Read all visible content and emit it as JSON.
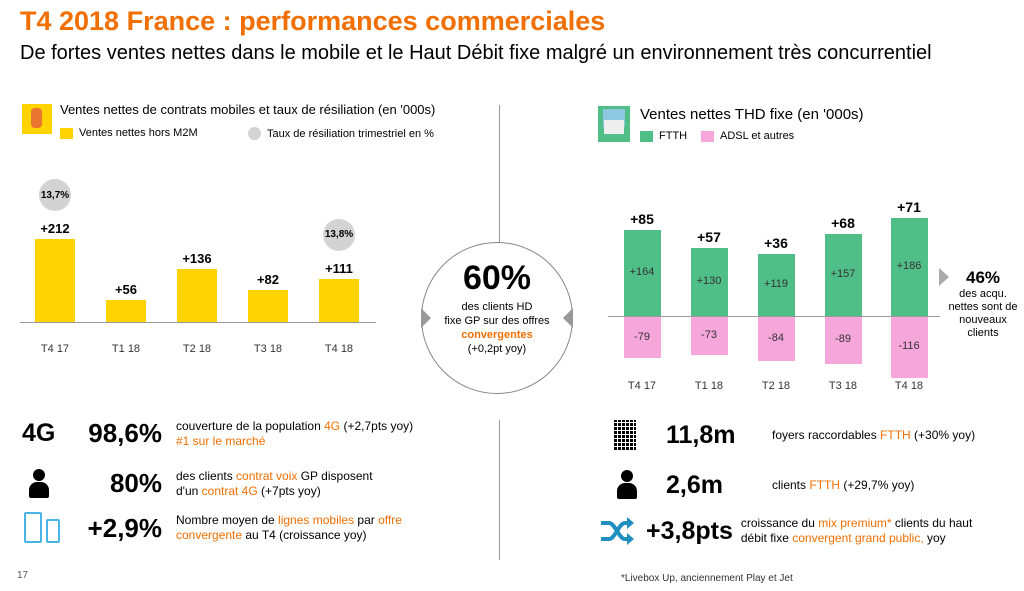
{
  "header": {
    "title": "T4 2018 France : performances commerciales",
    "subtitle": "De fortes ventes nettes dans le mobile et le Haut Débit fixe malgré un environnement très concurrentiel"
  },
  "colors": {
    "accent": "#f16e00",
    "mobile_bar": "#ffd200",
    "bubble": "#d3d3d3",
    "ftth": "#50be87",
    "adsl": "#f5a7dc",
    "icon_blue": "#4bb4e6"
  },
  "chart_data": [
    {
      "type": "bar",
      "title": "Ventes nettes de contrats mobiles et taux de résiliation (en '000s)",
      "categories": [
        "T4 17",
        "T1 18",
        "T2 18",
        "T3 18",
        "T4 18"
      ],
      "series": [
        {
          "name": "Ventes nettes hors M2M",
          "values": [
            212,
            56,
            136,
            82,
            111
          ],
          "labels": [
            "+212",
            "+56",
            "+136",
            "+82",
            "+111"
          ]
        }
      ],
      "bubbles": {
        "name": "Taux de résiliation trimestriel en %",
        "values": [
          13.7,
          null,
          null,
          null,
          13.8
        ],
        "labels": [
          "13,7%",
          "",
          "",
          "",
          "13,8%"
        ]
      },
      "ylim": [
        0,
        230
      ]
    },
    {
      "type": "bar",
      "title": "Ventes nettes THD fixe (en '000s)",
      "categories": [
        "T4 17",
        "T1 18",
        "T2 18",
        "T3 18",
        "T4 18"
      ],
      "series": [
        {
          "name": "FTTH",
          "values": [
            164,
            130,
            119,
            157,
            186
          ],
          "labels": [
            "+164",
            "+130",
            "+119",
            "+157",
            "+186"
          ]
        },
        {
          "name": "ADSL et autres",
          "values": [
            -79,
            -73,
            -84,
            -89,
            -116
          ],
          "labels": [
            "-79",
            "-73",
            "-84",
            "-89",
            "-116"
          ]
        }
      ],
      "totals": {
        "values": [
          85,
          57,
          36,
          68,
          71
        ],
        "labels": [
          "+85",
          "+57",
          "+36",
          "+68",
          "+71"
        ]
      },
      "ylim": [
        -130,
        200
      ],
      "annotation": {
        "value": "46%",
        "text": "des acqu. nettes sont de nouveaux clients"
      }
    }
  ],
  "center": {
    "value": "60%",
    "line1": "des clients HD",
    "line2": "fixe GP sur des offres",
    "line3": "convergentes",
    "line4": "(+0,2pt yoy)"
  },
  "left_stats": [
    {
      "icon": "4G",
      "value": "98,6%",
      "l1a": "couverture de la population ",
      "l1b": "4G",
      "l1c": " (+2,7pts yoy)",
      "l2a": "",
      "l2b": "#1 sur le marché",
      "l2c": ""
    },
    {
      "icon": "person-icon",
      "value": "80%",
      "l1a": "des clients ",
      "l1b": "contrat voix",
      "l1c": " GP disposent",
      "l2a": "d'un ",
      "l2b": "contrat 4G",
      "l2c": " (+7pts yoy)"
    },
    {
      "icon": "devices-icon",
      "value": "+2,9%",
      "l1a": "Nombre moyen de ",
      "l1b": "lignes mobiles",
      "l1c": " par ",
      "l1d": "offre",
      "l2a": "",
      "l2b": "convergente",
      "l2c": " au T4 (croissance yoy)"
    }
  ],
  "right_stats": [
    {
      "icon": "building-icon",
      "value": "11,8m",
      "a": "foyers raccordables ",
      "b": "FTTH",
      "c": " (+30% yoy)"
    },
    {
      "icon": "person-icon",
      "value": "2,6m",
      "a": "clients ",
      "b": "FTTH",
      "c": " (+29,7% yoy)"
    },
    {
      "icon": "shuffle-icon",
      "value": "+3,8pts",
      "l1a": "croissance du ",
      "l1b": "mix  premium*",
      "l1c": " clients du haut",
      "l2a": "débit fixe ",
      "l2b": "convergent grand public,",
      "l2c": " yoy"
    }
  ],
  "footer": {
    "page": "17",
    "note": "*Livebox Up, anciennement Play et Jet"
  }
}
